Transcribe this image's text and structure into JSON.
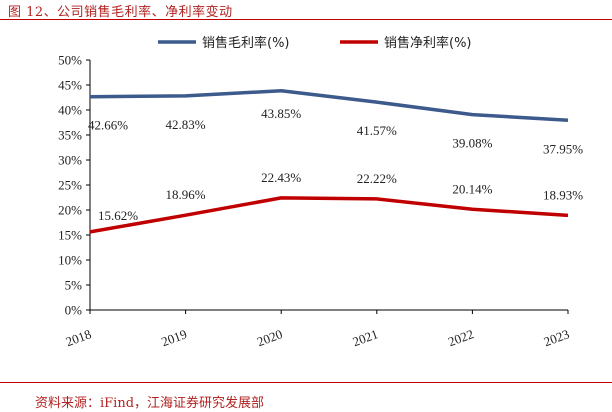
{
  "figure": {
    "title": "图 12、公司销售毛利率、净利率变动",
    "source": "资料来源：iFind，江海证券研究发展部"
  },
  "chart_data": {
    "type": "line",
    "title": "",
    "xlabel": "",
    "ylabel": "",
    "categories": [
      "2018",
      "2019",
      "2020",
      "2021",
      "2022",
      "2023"
    ],
    "ylim": [
      0,
      50
    ],
    "yticks": [
      0,
      5,
      10,
      15,
      20,
      25,
      30,
      35,
      40,
      45,
      50
    ],
    "ytick_labels": [
      "0%",
      "5%",
      "10%",
      "15%",
      "20%",
      "25%",
      "30%",
      "35%",
      "40%",
      "45%",
      "50%"
    ],
    "legend_position": "top",
    "grid": false,
    "series": [
      {
        "name": "销售毛利率(%)",
        "color": "#3c5a8c",
        "values": [
          42.66,
          42.83,
          43.85,
          41.57,
          39.08,
          37.95
        ],
        "labels": [
          "42.66%",
          "42.83%",
          "43.85%",
          "41.57%",
          "39.08%",
          "37.95%"
        ]
      },
      {
        "name": "销售净利率(%)",
        "color": "#c00000",
        "values": [
          15.62,
          18.96,
          22.43,
          22.22,
          20.14,
          18.93
        ],
        "labels": [
          "15.62%",
          "18.96%",
          "22.43%",
          "22.22%",
          "20.14%",
          "18.93%"
        ]
      }
    ]
  }
}
